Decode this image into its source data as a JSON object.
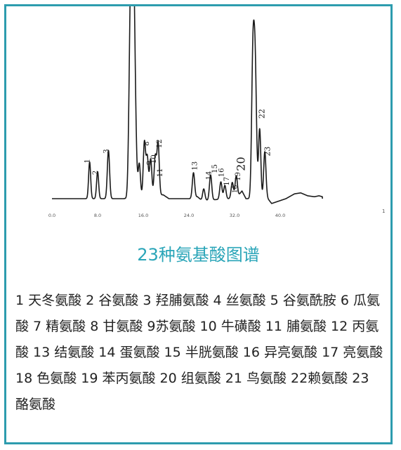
{
  "chart_data": {
    "type": "line",
    "title": "",
    "xlabel": "",
    "ylabel": "",
    "xlim": [
      0,
      56
    ],
    "ylim": [
      0,
      100
    ],
    "x_ticks": [
      "0.0",
      "8.0",
      "16.0",
      "24.0",
      "32.0",
      "40.0"
    ],
    "x_end_tick": "1",
    "line_color": "#1a1a1a",
    "baseline": 4,
    "peaks": [
      {
        "label": "1",
        "x": 6.6,
        "height": 19,
        "width": 0.18
      },
      {
        "label": "2",
        "x": 8.0,
        "height": 14,
        "width": 0.18
      },
      {
        "label": "3",
        "x": 9.9,
        "height": 25,
        "width": 0.2
      },
      {
        "label": "",
        "x": 13.8,
        "height": 96,
        "width": 0.28
      },
      {
        "label": "",
        "x": 14.3,
        "height": 104,
        "width": 0.3
      },
      {
        "label": "",
        "x": 15.3,
        "height": 17,
        "width": 0.2
      },
      {
        "label": "",
        "x": 16.2,
        "height": 28,
        "width": 0.2
      },
      {
        "label": "",
        "x": 16.7,
        "height": 20,
        "width": 0.2
      },
      {
        "label": "",
        "x": 17.3,
        "height": 19,
        "width": 0.2
      },
      {
        "label": "",
        "x": 18.1,
        "height": 20,
        "width": 0.2
      },
      {
        "label": "",
        "x": 18.6,
        "height": 27,
        "width": 0.2
      },
      {
        "label": "",
        "x": 24.8,
        "height": 13,
        "width": 0.2
      },
      {
        "label": "",
        "x": 26.6,
        "height": 6,
        "width": 0.2
      },
      {
        "label": "",
        "x": 27.8,
        "height": 13,
        "width": 0.2
      },
      {
        "label": "",
        "x": 29.6,
        "height": 9,
        "width": 0.2
      },
      {
        "label": "",
        "x": 30.3,
        "height": 7,
        "width": 0.2
      },
      {
        "label": "",
        "x": 31.6,
        "height": 8,
        "width": 0.2
      },
      {
        "label": "",
        "x": 32.3,
        "height": 11,
        "width": 0.2
      },
      {
        "label": "",
        "x": 35.2,
        "height": 66,
        "width": 0.22
      },
      {
        "label": "",
        "x": 35.6,
        "height": 69,
        "width": 0.24
      },
      {
        "label": "",
        "x": 36.4,
        "height": 36,
        "width": 0.2
      },
      {
        "label": "",
        "x": 37.3,
        "height": 24,
        "width": 0.2
      }
    ],
    "peak_labels": [
      {
        "text": "1",
        "x": 6.6,
        "y": 23.5,
        "size": 10
      },
      {
        "text": "2",
        "x": 8.0,
        "y": 17.5,
        "size": 10
      },
      {
        "text": "3",
        "x": 9.9,
        "y": 28.5,
        "size": 10
      },
      {
        "text": "8",
        "x": 17.0,
        "y": 32.5,
        "size": 10
      },
      {
        "text": "12",
        "x": 19.2,
        "y": 32.5,
        "size": 10
      },
      {
        "text": "9",
        "x": 17.5,
        "y": 22.5,
        "size": 10
      },
      {
        "text": "10",
        "x": 18.2,
        "y": 24.5,
        "size": 10
      },
      {
        "text": "11",
        "x": 19.3,
        "y": 17.5,
        "size": 10
      },
      {
        "text": "13",
        "x": 25.4,
        "y": 21.0,
        "size": 10
      },
      {
        "text": "14",
        "x": 27.9,
        "y": 16.0,
        "size": 10
      },
      {
        "text": "15",
        "x": 28.9,
        "y": 19.5,
        "size": 10
      },
      {
        "text": "16",
        "x": 30.1,
        "y": 17.5,
        "size": 10
      },
      {
        "text": "17",
        "x": 31.0,
        "y": 13.0,
        "size": 10
      },
      {
        "text": "18",
        "x": 32.4,
        "y": 9.0,
        "size": 9
      },
      {
        "text": "19",
        "x": 33.0,
        "y": 15.5,
        "size": 10
      },
      {
        "text": "20",
        "x": 33.8,
        "y": 22.0,
        "size": 16
      },
      {
        "text": "22",
        "x": 37.2,
        "y": 48.0,
        "size": 11
      },
      {
        "text": "23",
        "x": 38.2,
        "y": 28.5,
        "size": 11
      }
    ],
    "trace_extra": [
      [
        0,
        4
      ],
      [
        12.8,
        4
      ],
      [
        13.2,
        3
      ],
      [
        13.6,
        5
      ],
      [
        14.8,
        9
      ],
      [
        15.1,
        5
      ],
      [
        19.5,
        6
      ],
      [
        20.5,
        4
      ],
      [
        24.2,
        4
      ],
      [
        25.5,
        5
      ],
      [
        26.3,
        3
      ],
      [
        31.0,
        4
      ],
      [
        32.5,
        5
      ],
      [
        33.3,
        8
      ],
      [
        34.0,
        4
      ],
      [
        36.5,
        4
      ],
      [
        37.7,
        4.5
      ],
      [
        38.5,
        1.5
      ],
      [
        39.5,
        2.5
      ],
      [
        41.0,
        4
      ],
      [
        42.5,
        6.5
      ],
      [
        43.6,
        7
      ],
      [
        44.8,
        5.5
      ],
      [
        46.0,
        5
      ],
      [
        46.8,
        5.5
      ],
      [
        47.4,
        5
      ]
    ]
  },
  "caption": "23种氨基酸图谱",
  "legend_text": "1 天冬氨酸 2 谷氨酸 3 羟脯氨酸 4 丝氨酸 5 谷氨酰胺 6 瓜氨酸 7 精氨酸 8 甘氨酸 9苏氨酸 10 牛磺酸 11 脯氨酸 12 丙氨酸 13 结氨酸 14 蛋氨酸 15 半胱氨酸 16 异亮氨酸 17 亮氨酸 18 色氨酸 19 苯丙氨酸 20 组氨酸 21 鸟氨酸 22赖氨酸 23 酪氨酸",
  "frame_color": "#2d9cae",
  "caption_color": "#2aa5b8"
}
